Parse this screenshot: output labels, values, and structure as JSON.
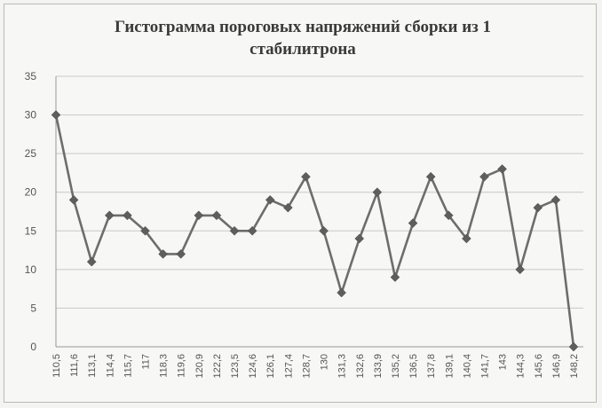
{
  "chart_data": {
    "type": "line",
    "title_lines": [
      "Гистограмма пороговых напряжений сборки из 1",
      "стабилитрона"
    ],
    "xlabel": "",
    "ylabel": "",
    "ylim": [
      0,
      35
    ],
    "y_ticks": [
      0,
      5,
      10,
      15,
      20,
      25,
      30,
      35
    ],
    "grid": true,
    "legend": "none",
    "colors": {
      "series": "#6d6d6d",
      "grid": "#c8c8c8"
    },
    "categories": [
      "110,5",
      "111,6",
      "113,1",
      "114,4",
      "115,7",
      "117",
      "118,3",
      "119,6",
      "120,9",
      "122,2",
      "123,5",
      "124,6",
      "126,1",
      "127,4",
      "128,7",
      "130",
      "131,3",
      "132,6",
      "133,9",
      "135,2",
      "136,5",
      "137,8",
      "139,1",
      "140,4",
      "141,7",
      "143",
      "144,3",
      "145,6",
      "146,9",
      "148,2"
    ],
    "series": [
      {
        "values": [
          30,
          19,
          11,
          17,
          17,
          15,
          12,
          12,
          17,
          17,
          15,
          15,
          19,
          18,
          22,
          15,
          7,
          14,
          20,
          9,
          16,
          22,
          17,
          14,
          22,
          23,
          10,
          18,
          19,
          0
        ]
      }
    ]
  }
}
